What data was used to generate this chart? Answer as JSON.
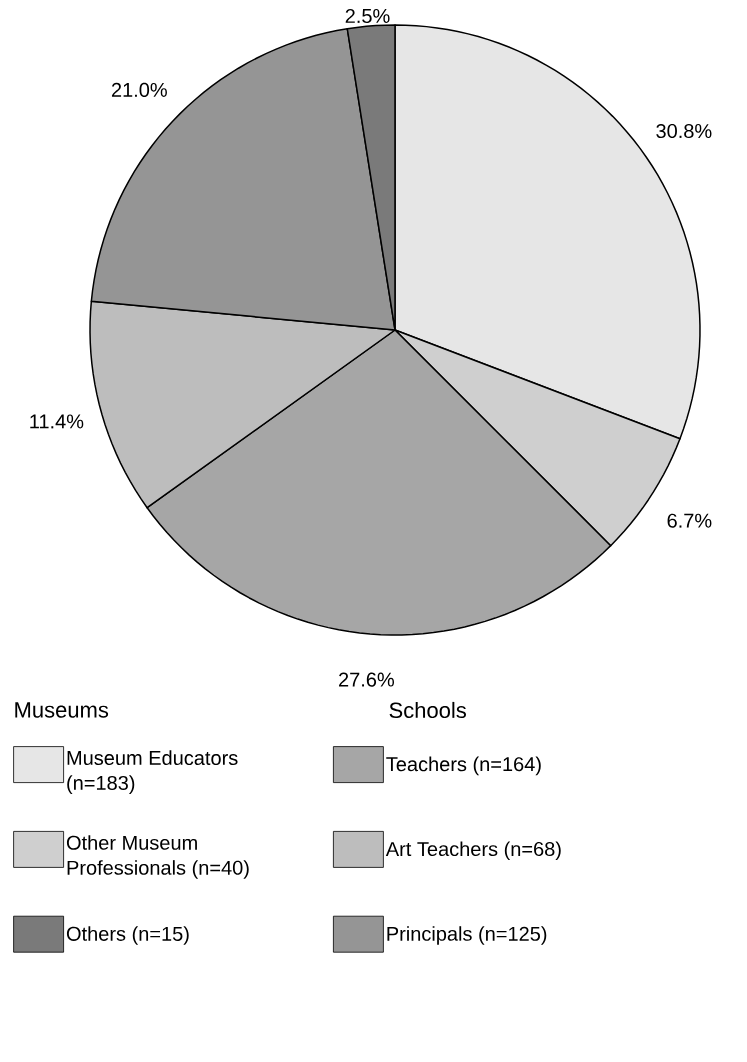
{
  "chart_data": {
    "type": "pie",
    "categories": [
      "Museum Educators (n=183)",
      "Other Museum Professionals (n=40)",
      "Teachers (n=164)",
      "Art Teachers (n=68)",
      "Principals (n=125)",
      "Others (n=15)"
    ],
    "values": [
      30.8,
      6.7,
      27.6,
      11.4,
      21.0,
      2.5
    ],
    "value_labels": [
      "30.8%",
      "6.7%",
      "27.6%",
      "11.4%",
      "21.0%",
      "2.5%"
    ],
    "colors": [
      "#e6e6e6",
      "#cfcfcf",
      "#a6a6a6",
      "#bdbdbd",
      "#959595",
      "#7a7a7a"
    ],
    "legend": "bottom",
    "annotations": [
      "Museums",
      "Schools"
    ]
  }
}
